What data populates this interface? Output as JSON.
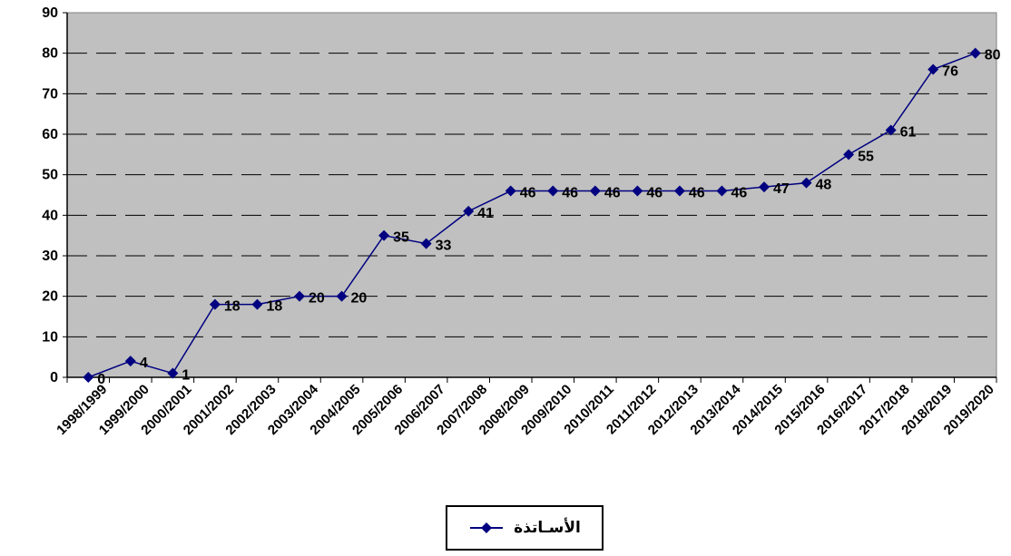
{
  "chart_data": {
    "type": "line",
    "categories": [
      "1998/1999",
      "1999/2000",
      "2000/2001",
      "2001/2002",
      "2002/2003",
      "2003/2004",
      "2004/2005",
      "2005/2006",
      "2006/2007",
      "2007/2008",
      "2008/2009",
      "2009/2010",
      "2010/2011",
      "2011/2012",
      "2012/2013",
      "2013/2014",
      "2014/2015",
      "2015/2016",
      "2016/2017",
      "2017/2018",
      "2018/2019",
      "2019/2020"
    ],
    "series": [
      {
        "name": "الأسـاتذة",
        "values": [
          0,
          4,
          1,
          18,
          18,
          20,
          20,
          35,
          33,
          41,
          46,
          46,
          46,
          46,
          46,
          46,
          47,
          48,
          55,
          61,
          76,
          80
        ],
        "color": "#000080"
      }
    ],
    "ylim": [
      0,
      90
    ],
    "yticks": [
      0,
      10,
      20,
      30,
      40,
      50,
      60,
      70,
      80,
      90
    ],
    "grid": true,
    "legend_position": "bottom",
    "plot_background": "#c0c0c0"
  }
}
